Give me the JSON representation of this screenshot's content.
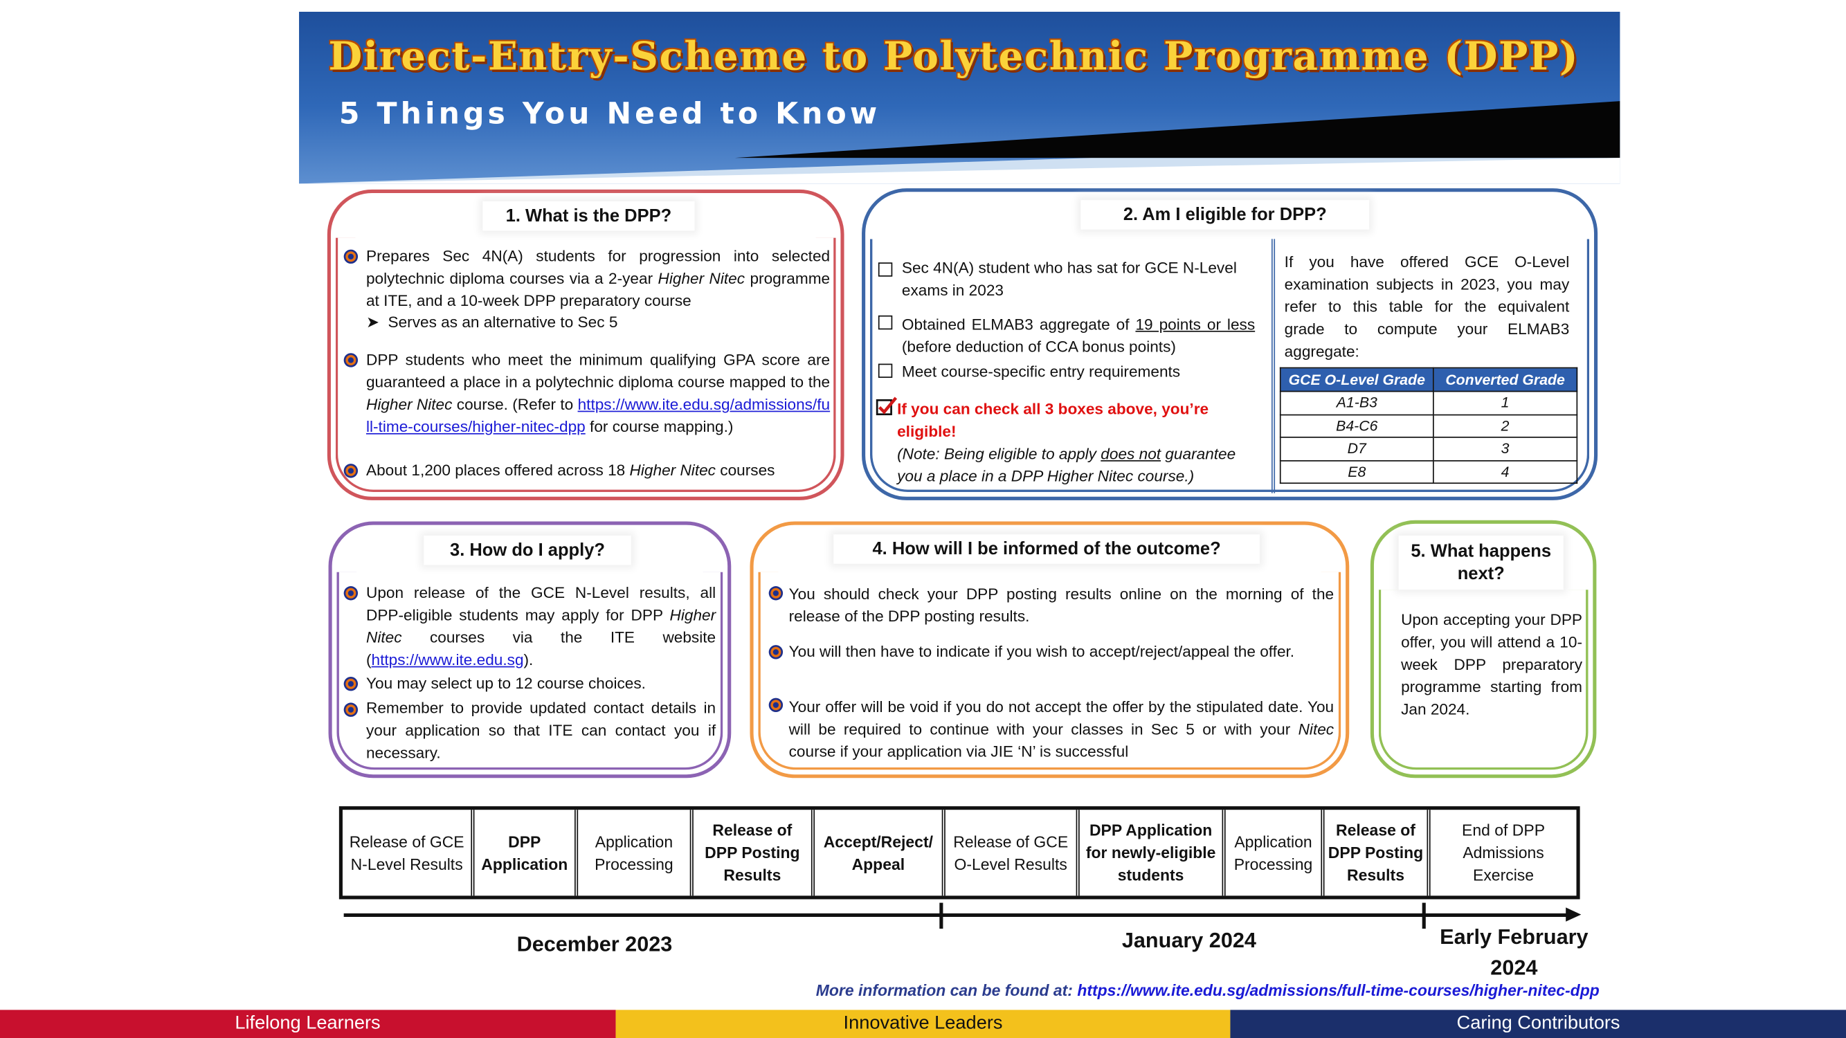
{
  "header": {
    "title": "Direct-Entry-Scheme to Polytechnic Programme (DPP)",
    "subtitle": "5 Things You Need to Know"
  },
  "s1": {
    "heading": "1. What is the DPP?",
    "p1a": "Prepares Sec 4N(A) students for progression into selected polytechnic diploma courses via a 2-year ",
    "p1i": "Higher Nitec",
    "p1b": " programme at ITE, and a 10-week DPP preparatory course",
    "sub": "Serves as an alternative to Sec 5",
    "p2a": "DPP students who meet the minimum qualifying GPA score are guaranteed a place in a polytechnic diploma course mapped to the ",
    "p2i": "Higher Nitec",
    "p2b": " course. (Refer to ",
    "p2link": "https://www.ite.edu.sg/admissions/full-time-courses/higher-nitec-dpp",
    "p2c": " for course mapping.)",
    "p3a": "About 1,200 places offered across 18 ",
    "p3i": "Higher Nitec",
    "p3b": " courses"
  },
  "s2": {
    "heading": "2. Am I eligible for DPP?",
    "c1": "Sec 4N(A) student who has sat for GCE N-Level exams in 2023",
    "c2a": "Obtained ELMAB3 aggregate of ",
    "c2u": "19 points or less",
    "c2b": " (before deduction of CCA bonus points)",
    "c3": "Meet course-specific entry requirements",
    "eligible": "If you can check all 3 boxes above, you’re eligible!",
    "notea": "(Note: Being eligible to apply ",
    "noteu": "does not",
    "noteb": " guarantee you a place in a DPP Higher Nitec course.)",
    "table_intro": "If you have offered GCE O-Level examination subjects in 2023, you may refer to this table for the equivalent grade to compute your ELMAB3 aggregate:",
    "table": {
      "headers": [
        "GCE O-Level Grade",
        "Converted Grade"
      ],
      "rows": [
        [
          "A1-B3",
          "1"
        ],
        [
          "B4-C6",
          "2"
        ],
        [
          "D7",
          "3"
        ],
        [
          "E8",
          "4"
        ]
      ]
    }
  },
  "s3": {
    "heading": "3. How do I apply?",
    "p1a": "Upon release of the GCE N-Level results, all DPP-eligible students may apply for DPP ",
    "p1i": "Higher Nitec",
    "p1b": " courses via the ITE website (",
    "p1link": "https://www.ite.edu.sg",
    "p1c": ").",
    "p2": "You may select up to 12 course choices.",
    "p3": "Remember to provide updated contact details in your application so that ITE can contact you if necessary."
  },
  "s4": {
    "heading": "4. How will I be informed of the outcome?",
    "p1": "You should check your DPP posting results online on the morning of the release of the DPP posting results.",
    "p2": "You will then have to indicate if you wish to accept/reject/appeal the offer.",
    "p3a": "Your offer will be void if you do not accept the offer by the stipulated date. You will be required to continue with your classes in Sec 5 or with your ",
    "p3i": "Nitec",
    "p3b": " course if your application via JIE ‘N’ is successful"
  },
  "s5": {
    "heading": "5. What happens next?",
    "body": "Upon accepting your DPP offer, you will attend a 10-week DPP preparatory programme starting from Jan 2024."
  },
  "timeline": {
    "steps": [
      "Release of GCE N-Level Results",
      "DPP Application",
      "Application Processing",
      "Release of DPP Posting Results",
      "Accept/Reject/ Appeal",
      "Release of GCE O-Level Results",
      "DPP Application for newly-eligible students",
      "Application Processing",
      "Release of DPP Posting Results",
      "End of DPP Admissions Exercise"
    ],
    "months": [
      "December 2023",
      "January 2024",
      "Early February 2024"
    ]
  },
  "more": {
    "label": "More information can be found at: ",
    "url": "https://www.ite.edu.sg/admissions/full-time-courses/higher-nitec-dpp"
  },
  "footer": [
    "Lifelong Learners",
    "Innovative Leaders",
    "Caring Contributors"
  ],
  "colors": {
    "box1": "#d0555b",
    "box2": "#3d67a8",
    "box3": "#8c63b3",
    "box4": "#f29a45",
    "box5": "#92c055",
    "footer1": "#c8102e",
    "footer2": "#f3c11c",
    "footer3": "#1b2f6b"
  }
}
